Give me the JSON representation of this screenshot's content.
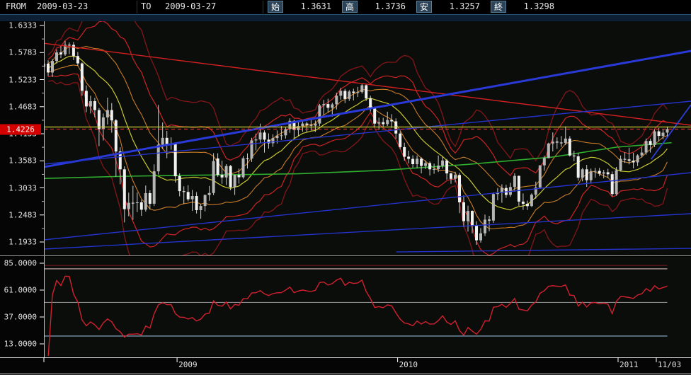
{
  "header": {
    "from_label": "FROM",
    "from_value": "2009-03-23",
    "to_label": "TO",
    "to_value": "2009-03-27",
    "ohlc": [
      {
        "label": "始",
        "value": "1.3631"
      },
      {
        "label": "高",
        "value": "1.3736"
      },
      {
        "label": "安",
        "value": "1.3257"
      },
      {
        "label": "終",
        "value": "1.3298"
      }
    ]
  },
  "price_axis": {
    "labels": [
      "1.6333",
      "1.5783",
      "1.5233",
      "1.4683",
      "1.4133",
      "1.3583",
      "1.3033",
      "1.2483",
      "1.1933"
    ],
    "top_price": 1.6333,
    "step": 0.055,
    "current": {
      "text": "1.4226",
      "price": 1.4226,
      "bg": "#d40000"
    }
  },
  "time_axis": {
    "ticks": [
      {
        "label": "",
        "week": 0
      },
      {
        "label": "2009",
        "week": 31.4
      },
      {
        "label": "2010",
        "week": 83.4
      },
      {
        "label": "2011",
        "week": 135.4
      },
      {
        "label": "11/03",
        "week": 144.4
      }
    ]
  },
  "indicator_axis": {
    "labels": [
      "85.0000",
      "61.0000",
      "37.0000",
      "13.0000"
    ],
    "top_value": 85,
    "step": 24
  },
  "chart_data": {
    "type": "candlestick",
    "timeframe": "weekly",
    "title": "",
    "price_range_visible": [
      1.166,
      1.642
    ],
    "candles": [
      [
        1.549,
        1.5635,
        1.5395,
        1.5556
      ],
      [
        1.5556,
        1.5625,
        1.5303,
        1.5377
      ],
      [
        1.5377,
        1.565,
        1.5285,
        1.5613
      ],
      [
        1.5613,
        1.5844,
        1.556,
        1.5785
      ],
      [
        1.5785,
        1.591,
        1.567,
        1.5745
      ],
      [
        1.5745,
        1.6019,
        1.5715,
        1.594
      ],
      [
        1.594,
        1.5988,
        1.575,
        1.5938
      ],
      [
        1.5938,
        1.5998,
        1.5628,
        1.5712
      ],
      [
        1.5712,
        1.5795,
        1.5512,
        1.5562
      ],
      [
        1.5562,
        1.5582,
        1.4905,
        1.5005
      ],
      [
        1.5005,
        1.5115,
        1.457,
        1.4688
      ],
      [
        1.4688,
        1.4905,
        1.4545,
        1.4795
      ],
      [
        1.4795,
        1.486,
        1.4465,
        1.4614
      ],
      [
        1.4614,
        1.4655,
        1.388,
        1.4224
      ],
      [
        1.4224,
        1.4545,
        1.3995,
        1.4465
      ],
      [
        1.4465,
        1.4865,
        1.432,
        1.4613
      ],
      [
        1.4613,
        1.4755,
        1.4155,
        1.4405
      ],
      [
        1.4405,
        1.4435,
        1.326,
        1.3772
      ],
      [
        1.3772,
        1.3855,
        1.3105,
        1.341
      ],
      [
        1.341,
        1.347,
        1.233,
        1.26
      ],
      [
        1.26,
        1.2935,
        1.2455,
        1.273
      ],
      [
        1.273,
        1.3075,
        1.2385,
        1.2723
      ],
      [
        1.2723,
        1.294,
        1.254,
        1.2738
      ],
      [
        1.2738,
        1.279,
        1.2465,
        1.2588
      ],
      [
        1.2588,
        1.308,
        1.255,
        1.2925
      ],
      [
        1.2925,
        1.2985,
        1.2595,
        1.271
      ],
      [
        1.271,
        1.351,
        1.2665,
        1.3369
      ],
      [
        1.3369,
        1.4719,
        1.3305,
        1.391
      ],
      [
        1.391,
        1.4362,
        1.3825,
        1.405
      ],
      [
        1.405,
        1.419,
        1.3635,
        1.3917
      ],
      [
        1.3917,
        1.406,
        1.381,
        1.3921
      ],
      [
        1.3921,
        1.3945,
        1.314,
        1.327
      ],
      [
        1.327,
        1.333,
        1.286,
        1.2966
      ],
      [
        1.2966,
        1.3065,
        1.2705,
        1.295
      ],
      [
        1.295,
        1.309,
        1.276,
        1.28
      ],
      [
        1.28,
        1.2992,
        1.2565,
        1.2868
      ],
      [
        1.2868,
        1.2945,
        1.2513,
        1.258
      ],
      [
        1.258,
        1.271,
        1.2405,
        1.2665
      ],
      [
        1.2665,
        1.29,
        1.2555,
        1.2886
      ],
      [
        1.2886,
        1.3073,
        1.277,
        1.2928
      ],
      [
        1.2928,
        1.3738,
        1.2885,
        1.3577
      ],
      [
        1.3631,
        1.3736,
        1.3257,
        1.3298
      ],
      [
        1.3298,
        1.3585,
        1.3115,
        1.3245
      ],
      [
        1.3245,
        1.3515,
        1.309,
        1.3478
      ],
      [
        1.3478,
        1.35,
        1.2985,
        1.3045
      ],
      [
        1.3045,
        1.3305,
        1.289,
        1.3297
      ],
      [
        1.3297,
        1.3425,
        1.312,
        1.3249
      ],
      [
        1.3249,
        1.368,
        1.322,
        1.3634
      ],
      [
        1.3634,
        1.3735,
        1.3425,
        1.3628
      ],
      [
        1.3628,
        1.405,
        1.356,
        1.3998
      ],
      [
        1.3998,
        1.4135,
        1.3795,
        1.4016
      ],
      [
        1.4016,
        1.4338,
        1.3935,
        1.4158
      ],
      [
        1.4158,
        1.4202,
        1.375,
        1.4013
      ],
      [
        1.4013,
        1.414,
        1.383,
        1.394
      ],
      [
        1.394,
        1.412,
        1.3865,
        1.4044
      ],
      [
        1.4044,
        1.42,
        1.3935,
        1.4094
      ],
      [
        1.4094,
        1.429,
        1.4005,
        1.41
      ],
      [
        1.41,
        1.427,
        1.4035,
        1.4225
      ],
      [
        1.4225,
        1.4446,
        1.415,
        1.4395
      ],
      [
        1.4395,
        1.4415,
        1.4045,
        1.4205
      ],
      [
        1.4205,
        1.438,
        1.409,
        1.429
      ],
      [
        1.429,
        1.4405,
        1.4175,
        1.434
      ],
      [
        1.434,
        1.438,
        1.4155,
        1.4312
      ],
      [
        1.4312,
        1.4415,
        1.42,
        1.4298
      ],
      [
        1.4298,
        1.44,
        1.417,
        1.434
      ],
      [
        1.434,
        1.474,
        1.429,
        1.471
      ],
      [
        1.471,
        1.482,
        1.4515,
        1.4735
      ],
      [
        1.4735,
        1.4845,
        1.456,
        1.466
      ],
      [
        1.466,
        1.4765,
        1.448,
        1.473
      ],
      [
        1.473,
        1.4968,
        1.4625,
        1.4906
      ],
      [
        1.4906,
        1.5062,
        1.482,
        1.5005
      ],
      [
        1.5005,
        1.5045,
        1.4755,
        1.484
      ],
      [
        1.484,
        1.502,
        1.48,
        1.499
      ],
      [
        1.499,
        1.5048,
        1.481,
        1.4963
      ],
      [
        1.4963,
        1.5085,
        1.488,
        1.498
      ],
      [
        1.498,
        1.5145,
        1.495,
        1.5118
      ],
      [
        1.5118,
        1.514,
        1.48,
        1.485
      ],
      [
        1.485,
        1.4905,
        1.4585,
        1.465
      ],
      [
        1.465,
        1.4685,
        1.426,
        1.434
      ],
      [
        1.434,
        1.446,
        1.4215,
        1.4368
      ],
      [
        1.4368,
        1.4458,
        1.4263,
        1.4328
      ],
      [
        1.4328,
        1.458,
        1.429,
        1.4412
      ],
      [
        1.4412,
        1.453,
        1.4253,
        1.4385
      ],
      [
        1.4385,
        1.4445,
        1.403,
        1.4138
      ],
      [
        1.4138,
        1.418,
        1.3822,
        1.3862
      ],
      [
        1.3862,
        1.395,
        1.3585,
        1.3667
      ],
      [
        1.3667,
        1.379,
        1.353,
        1.3622
      ],
      [
        1.3622,
        1.3695,
        1.3445,
        1.3515
      ],
      [
        1.3515,
        1.369,
        1.3435,
        1.3625
      ],
      [
        1.3625,
        1.3655,
        1.333,
        1.348
      ],
      [
        1.348,
        1.359,
        1.3415,
        1.3537
      ],
      [
        1.3537,
        1.357,
        1.3285,
        1.341
      ],
      [
        1.341,
        1.3525,
        1.332,
        1.3414
      ],
      [
        1.3414,
        1.369,
        1.3355,
        1.3485
      ],
      [
        1.3485,
        1.3665,
        1.3425,
        1.359
      ],
      [
        1.359,
        1.362,
        1.32,
        1.3327
      ],
      [
        1.3327,
        1.334,
        1.3115,
        1.3217
      ],
      [
        1.3217,
        1.336,
        1.3145,
        1.3295
      ],
      [
        1.3295,
        1.334,
        1.252,
        1.274
      ],
      [
        1.274,
        1.288,
        1.2235,
        1.2357
      ],
      [
        1.2357,
        1.267,
        1.2145,
        1.2565
      ],
      [
        1.2565,
        1.2575,
        1.211,
        1.227
      ],
      [
        1.227,
        1.2355,
        1.1876,
        1.1968
      ],
      [
        1.1968,
        1.2215,
        1.192,
        1.211
      ],
      [
        1.211,
        1.249,
        1.2055,
        1.2388
      ],
      [
        1.2388,
        1.2465,
        1.215,
        1.2369
      ],
      [
        1.2369,
        1.294,
        1.232,
        1.2908
      ],
      [
        1.2908,
        1.303,
        1.278,
        1.293
      ],
      [
        1.293,
        1.3105,
        1.273,
        1.303
      ],
      [
        1.303,
        1.3095,
        1.283,
        1.289
      ],
      [
        1.289,
        1.3135,
        1.285,
        1.305
      ],
      [
        1.305,
        1.333,
        1.2955,
        1.3276
      ],
      [
        1.3276,
        1.3285,
        1.2665,
        1.2754
      ],
      [
        1.2754,
        1.292,
        1.2585,
        1.271
      ],
      [
        1.271,
        1.2775,
        1.2585,
        1.2663
      ],
      [
        1.2663,
        1.292,
        1.2645,
        1.2895
      ],
      [
        1.2895,
        1.316,
        1.2815,
        1.304
      ],
      [
        1.304,
        1.3495,
        1.3015,
        1.349
      ],
      [
        1.349,
        1.3685,
        1.338,
        1.3638
      ],
      [
        1.3638,
        1.395,
        1.3635,
        1.3935
      ],
      [
        1.3935,
        1.416,
        1.3775,
        1.3972
      ],
      [
        1.3972,
        1.406,
        1.3825,
        1.3953
      ],
      [
        1.3953,
        1.4085,
        1.3865,
        1.3944
      ],
      [
        1.3944,
        1.4282,
        1.3905,
        1.4035
      ],
      [
        1.4035,
        1.4085,
        1.367,
        1.369
      ],
      [
        1.369,
        1.3785,
        1.3575,
        1.3673
      ],
      [
        1.3673,
        1.374,
        1.318,
        1.324
      ],
      [
        1.324,
        1.344,
        1.3165,
        1.341
      ],
      [
        1.341,
        1.35,
        1.3055,
        1.3188
      ],
      [
        1.3188,
        1.3425,
        1.3125,
        1.3364
      ],
      [
        1.3364,
        1.344,
        1.324,
        1.3377
      ],
      [
        1.3377,
        1.3438,
        1.327,
        1.3322
      ],
      [
        1.3322,
        1.3398,
        1.3226,
        1.335
      ],
      [
        1.335,
        1.342,
        1.3232,
        1.331
      ],
      [
        1.331,
        1.3365,
        1.286,
        1.2907
      ],
      [
        1.2907,
        1.3457,
        1.2875,
        1.3391
      ],
      [
        1.3391,
        1.369,
        1.337,
        1.3622
      ],
      [
        1.3622,
        1.3755,
        1.354,
        1.3611
      ],
      [
        1.3611,
        1.385,
        1.351,
        1.3585
      ],
      [
        1.3585,
        1.3745,
        1.3428,
        1.355
      ],
      [
        1.355,
        1.3715,
        1.3475,
        1.3693
      ],
      [
        1.3693,
        1.3855,
        1.365,
        1.375
      ],
      [
        1.375,
        1.4035,
        1.3705,
        1.3986
      ],
      [
        1.3986,
        1.4035,
        1.375,
        1.3905
      ],
      [
        1.3905,
        1.422,
        1.386,
        1.4182
      ],
      [
        1.4182,
        1.4248,
        1.398,
        1.4088
      ],
      [
        1.4088,
        1.422,
        1.402,
        1.4155
      ],
      [
        1.4155,
        1.428,
        1.406,
        1.4226
      ]
    ],
    "overlays": {
      "ma_period": 13,
      "bollinger_bands": [
        {
          "dev": 3,
          "color": "#7c1518",
          "width": 1.4
        },
        {
          "dev": 2,
          "color": "#cd2424",
          "width": 1.2
        },
        {
          "dev": 1,
          "color": "#c97d28",
          "width": 1.1
        }
      ],
      "ma_color": "#c9c930",
      "long_ma": {
        "color": "#2fae2f",
        "width": 1.6,
        "points": [
          [
            0,
            1.3225
          ],
          [
            20,
            1.327
          ],
          [
            40,
            1.3295
          ],
          [
            60,
            1.332
          ],
          [
            80,
            1.339
          ],
          [
            100,
            1.351
          ],
          [
            120,
            1.366
          ],
          [
            135,
            1.386
          ],
          [
            148,
            1.395
          ]
        ]
      },
      "trendlines": [
        {
          "color": "#d42020",
          "width": 1.4,
          "p1": [
            0,
            1.597
          ],
          "p2": [
            152.6,
            1.4305
          ]
        },
        {
          "color": "#2a3ad8",
          "width": 3,
          "p1": [
            0,
            1.3457
          ],
          "p2": [
            152.6,
            1.5815
          ]
        },
        {
          "color": "#2433cc",
          "width": 1.4,
          "p1": [
            0,
            1.3515
          ],
          "p2": [
            152.6,
            1.4795
          ]
        },
        {
          "color": "#2433cc",
          "width": 1.4,
          "p1": [
            0,
            1.1976
          ],
          "p2": [
            152.6,
            1.3343
          ]
        },
        {
          "color": "#2433cc",
          "width": 1.4,
          "p1": [
            0,
            1.1789
          ],
          "p2": [
            152.6,
            1.2508
          ]
        },
        {
          "color": "#2433cc",
          "width": 1.4,
          "p1": [
            83.1,
            1.1731
          ],
          "p2": [
            152.6,
            1.1803
          ]
        },
        {
          "color": "#2d3fd9",
          "width": 1.8,
          "p1": [
            143.2,
            1.3615
          ],
          "p2": [
            152.6,
            1.4723
          ]
        }
      ],
      "horizontal_lines": [
        {
          "color": "#cdcd33",
          "price": 1.427,
          "dash": ""
        },
        {
          "color": "#d43030",
          "price": 1.4226,
          "dash": "5,4"
        }
      ]
    },
    "indicator": {
      "type": "RSI",
      "period": 14,
      "color": "#d2202e",
      "levels": [
        {
          "value": 83,
          "color": "#701622"
        },
        {
          "value": 80,
          "color": "#d6b6b6"
        },
        {
          "value": 50,
          "color": "#8b8b8b"
        },
        {
          "value": 20,
          "color": "#8fb4d1"
        }
      ]
    },
    "style": {
      "candle_up_fill": "#b5b5b5",
      "candle_down_fill": "#f1f1f1",
      "wick_color": "#cfcfcf",
      "border_color": "#c8c8c8",
      "divider_color": "#9a9a9a",
      "plot_bg": "#0b0d0b"
    }
  }
}
